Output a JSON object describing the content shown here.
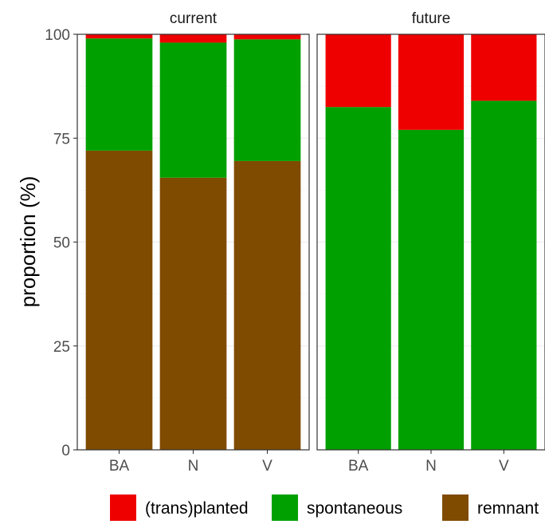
{
  "chart_data": {
    "type": "bar",
    "stacked": true,
    "ylabel": "proportion (%)",
    "xlabel": "",
    "ylim": [
      0,
      100
    ],
    "yticks": [
      0,
      25,
      50,
      75,
      100
    ],
    "grid": true,
    "legend_position": "bottom",
    "categories": [
      "BA",
      "N",
      "V"
    ],
    "panels": [
      {
        "label": "current",
        "series": [
          {
            "name": "remnant",
            "values": [
              72,
              65.5,
              69.5
            ]
          },
          {
            "name": "spontaneous",
            "values": [
              27,
              32.5,
              29.3
            ]
          },
          {
            "name": "(trans)planted",
            "values": [
              1,
              2,
              1.2
            ]
          }
        ]
      },
      {
        "label": "future",
        "series": [
          {
            "name": "remnant",
            "values": [
              0,
              0,
              0
            ]
          },
          {
            "name": "spontaneous",
            "values": [
              82.5,
              77,
              84
            ]
          },
          {
            "name": "(trans)planted",
            "values": [
              17.5,
              23,
              16
            ]
          }
        ]
      }
    ],
    "legend": [
      {
        "name": "(trans)planted",
        "color": "#ee0000"
      },
      {
        "name": "spontaneous",
        "color": "#00a000"
      },
      {
        "name": "remnant",
        "color": "#7f4b00"
      }
    ]
  }
}
